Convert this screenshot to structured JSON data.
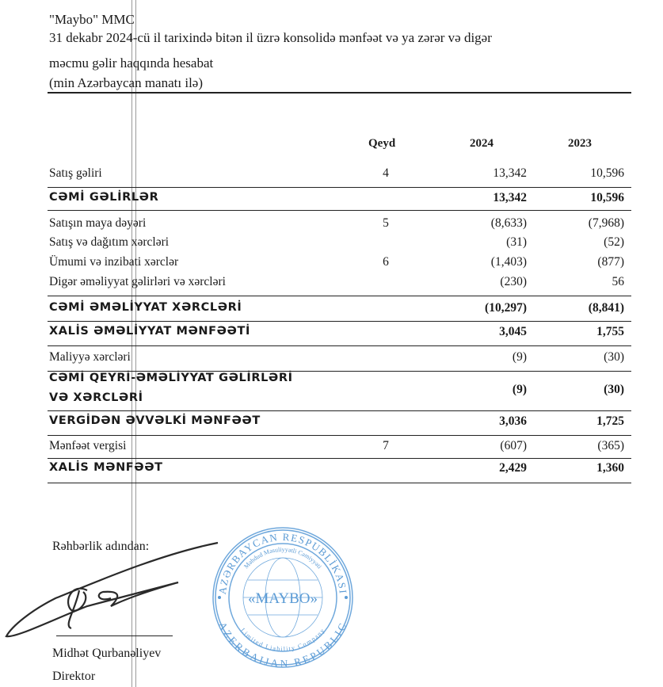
{
  "header": {
    "company": "\"Maybo\" MMC",
    "title_line1": "31 dekabr 2024-cü il tarixində bitən il üzrə konsolidə mənfəət və ya zərər və digər",
    "title_line2": "məcmu gəlir haqqında hesabat",
    "units": "(min Azərbaycan manatı ilə)"
  },
  "table": {
    "columns": {
      "note": "Qeyd",
      "y2024": "2024",
      "y2023": "2023"
    },
    "rows": [
      {
        "label": "Satış gəliri",
        "note": "4",
        "y2024": "13,342",
        "y2023": "10,596",
        "bold": false
      },
      {
        "label": "CƏMİ GƏLİRLƏR",
        "note": "",
        "y2024": "13,342",
        "y2023": "10,596",
        "bold": true
      },
      {
        "label": "Satışın maya dəyəri",
        "note": "5",
        "y2024": "(8,633)",
        "y2023": "(7,968)",
        "bold": false
      },
      {
        "label": "Satış və dağıtım xərcləri",
        "note": "",
        "y2024": "(31)",
        "y2023": "(52)",
        "bold": false
      },
      {
        "label": "Ümumi və inzibati xərclər",
        "note": "6",
        "y2024": "(1,403)",
        "y2023": "(877)",
        "bold": false
      },
      {
        "label": "Digər əməliyyat gəlirləri və xərcləri",
        "note": "",
        "y2024": "(230)",
        "y2023": "56",
        "bold": false
      },
      {
        "label": "CƏMİ ƏMƏLİYYAT XƏRCLƏRİ",
        "note": "",
        "y2024": "(10,297)",
        "y2023": "(8,841)",
        "bold": true
      },
      {
        "label": "XALİS ƏMƏLİYYAT MƏNFƏƏTİ",
        "note": "",
        "y2024": "3,045",
        "y2023": "1,755",
        "bold": true
      },
      {
        "label": "Maliyyə xərcləri",
        "note": "",
        "y2024": "(9)",
        "y2023": "(30)",
        "bold": false
      },
      {
        "label": "CƏMİ QEYRİ-ƏMƏLİYYAT GƏLİRLƏRİ",
        "label2": "VƏ XƏRCLƏRİ",
        "note": "",
        "y2024": "(9)",
        "y2023": "(30)",
        "bold": true
      },
      {
        "label": "VERGİDƏN ƏVVƏLKİ MƏNFƏƏT",
        "note": "",
        "y2024": "3,036",
        "y2023": "1,725",
        "bold": true
      },
      {
        "label": "Mənfəət vergisi",
        "note": "7",
        "y2024": "(607)",
        "y2023": "(365)",
        "bold": false
      },
      {
        "label": "XALİS MƏNFƏƏT",
        "note": "",
        "y2024": "2,429",
        "y2023": "1,360",
        "bold": true
      }
    ]
  },
  "signature": {
    "on_behalf": "Rəhbərlik adından:",
    "name": "Midhət Qurbanəliyev",
    "position": "Direktor"
  },
  "stamp": {
    "outer_top": "AZƏRBAYCAN RESPUBLİKASI",
    "outer_bottom": "AZERBAIJAN REPUBLIC",
    "inner_top": "Məhdud Məsuliyyətli Cəmiyyəti",
    "inner_bottom": "Limited Liability Company",
    "center": "«MAYBO»",
    "color": "#5b9bd5"
  }
}
